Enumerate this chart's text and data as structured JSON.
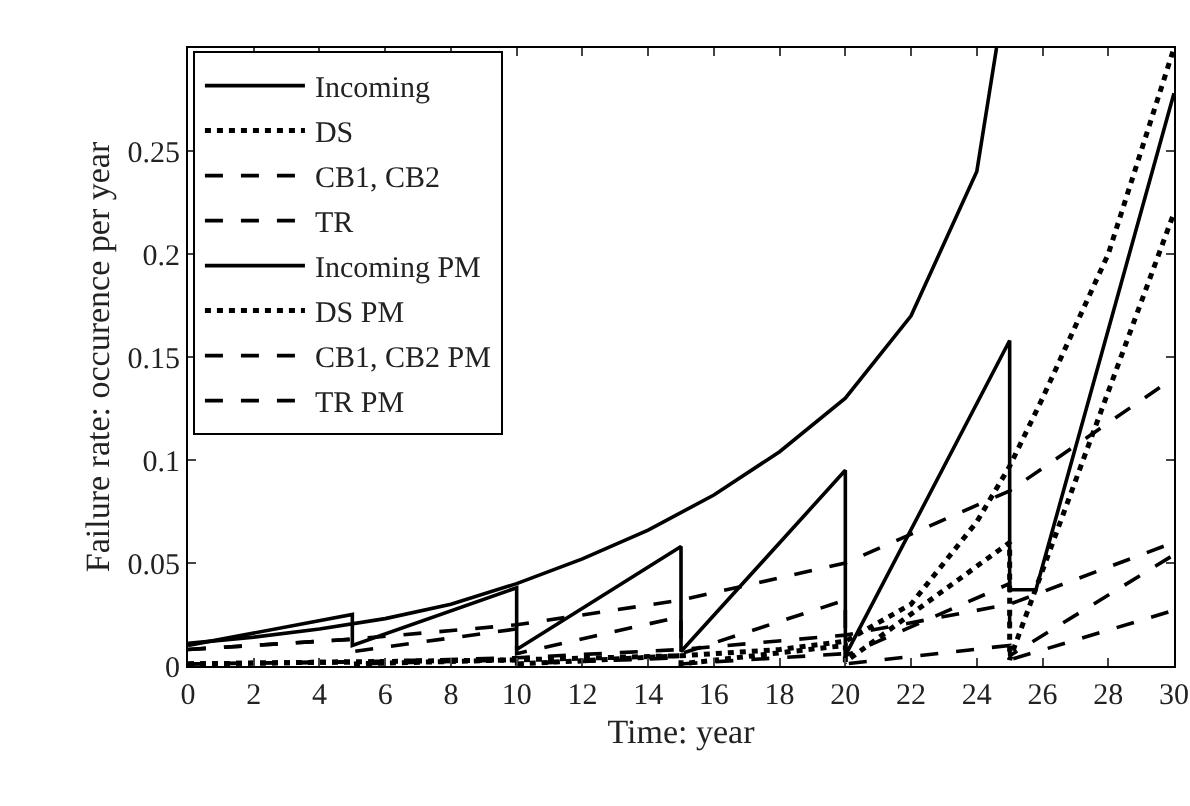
{
  "chart_data": {
    "type": "line",
    "xlabel": "Time: year",
    "ylabel": "Failure rate: occurence per year",
    "xlim": [
      0,
      30
    ],
    "ylim": [
      0,
      0.3
    ],
    "xticks": [
      0,
      2,
      4,
      6,
      8,
      10,
      12,
      14,
      16,
      18,
      20,
      22,
      24,
      26,
      28,
      30
    ],
    "yticks": [
      0,
      0.05,
      0.1,
      0.15,
      0.2,
      0.25
    ],
    "grid": false,
    "legend": "top left",
    "marker": "none",
    "series": [
      {
        "name": "Incoming",
        "color": "#000000",
        "line_style": "solid",
        "x": [
          0,
          2,
          4,
          6,
          8,
          10,
          12,
          14,
          16,
          18,
          20,
          22,
          24,
          24.6
        ],
        "values": [
          0.011,
          0.014,
          0.018,
          0.023,
          0.03,
          0.04,
          0.052,
          0.066,
          0.083,
          0.104,
          0.13,
          0.17,
          0.24,
          0.3
        ]
      },
      {
        "name": "DS",
        "color": "#000000",
        "line_style": "dotted",
        "x": [
          0,
          5,
          10,
          15,
          18,
          20,
          22,
          24,
          25,
          26,
          28,
          29,
          30
        ],
        "values": [
          0.001,
          0.002,
          0.003,
          0.005,
          0.008,
          0.012,
          0.03,
          0.07,
          0.097,
          0.13,
          0.2,
          0.25,
          0.3
        ]
      },
      {
        "name": "CB1, CB2",
        "color": "#000000",
        "line_style": "dashed",
        "x": [
          0,
          5,
          10,
          15,
          20,
          25,
          30
        ],
        "values": [
          0.001,
          0.002,
          0.004,
          0.008,
          0.015,
          0.03,
          0.06
        ]
      },
      {
        "name": "TR",
        "color": "#000000",
        "line_style": "dashed",
        "x": [
          0,
          5,
          10,
          15,
          20,
          25,
          30
        ],
        "values": [
          0.008,
          0.013,
          0.02,
          0.032,
          0.05,
          0.085,
          0.14
        ]
      },
      {
        "name": "Incoming PM",
        "color": "#000000",
        "line_style": "solid",
        "x": [
          0,
          5,
          5,
          10,
          10,
          15,
          15,
          20,
          20,
          25,
          25,
          25.8,
          30
        ],
        "values": [
          0.01,
          0.025,
          0.01,
          0.038,
          0.008,
          0.058,
          0.007,
          0.095,
          0.005,
          0.158,
          0.037,
          0.037,
          0.278
        ]
      },
      {
        "name": "DS PM",
        "color": "#000000",
        "line_style": "dotted",
        "x": [
          0,
          5,
          5,
          10,
          10,
          15,
          15,
          20,
          20,
          25,
          25,
          30
        ],
        "values": [
          0.001,
          0.002,
          0.001,
          0.003,
          0.001,
          0.005,
          0.001,
          0.01,
          0.002,
          0.06,
          0.003,
          0.22
        ]
      },
      {
        "name": "CB1, CB2 PM",
        "color": "#000000",
        "line_style": "dashed",
        "x": [
          0,
          5,
          5,
          10,
          10,
          15,
          15,
          20,
          20,
          25,
          25,
          30
        ],
        "values": [
          0.001,
          0.002,
          0.001,
          0.003,
          0.001,
          0.004,
          0.001,
          0.006,
          0.001,
          0.01,
          0.003,
          0.027
        ]
      },
      {
        "name": "TR PM",
        "color": "#000000",
        "line_style": "dashed",
        "x": [
          0,
          5,
          5,
          10,
          10,
          15,
          15,
          20,
          20,
          25,
          25,
          30
        ],
        "values": [
          0.008,
          0.013,
          0.007,
          0.018,
          0.006,
          0.024,
          0.006,
          0.032,
          0.005,
          0.04,
          0.005,
          0.054
        ]
      }
    ]
  }
}
